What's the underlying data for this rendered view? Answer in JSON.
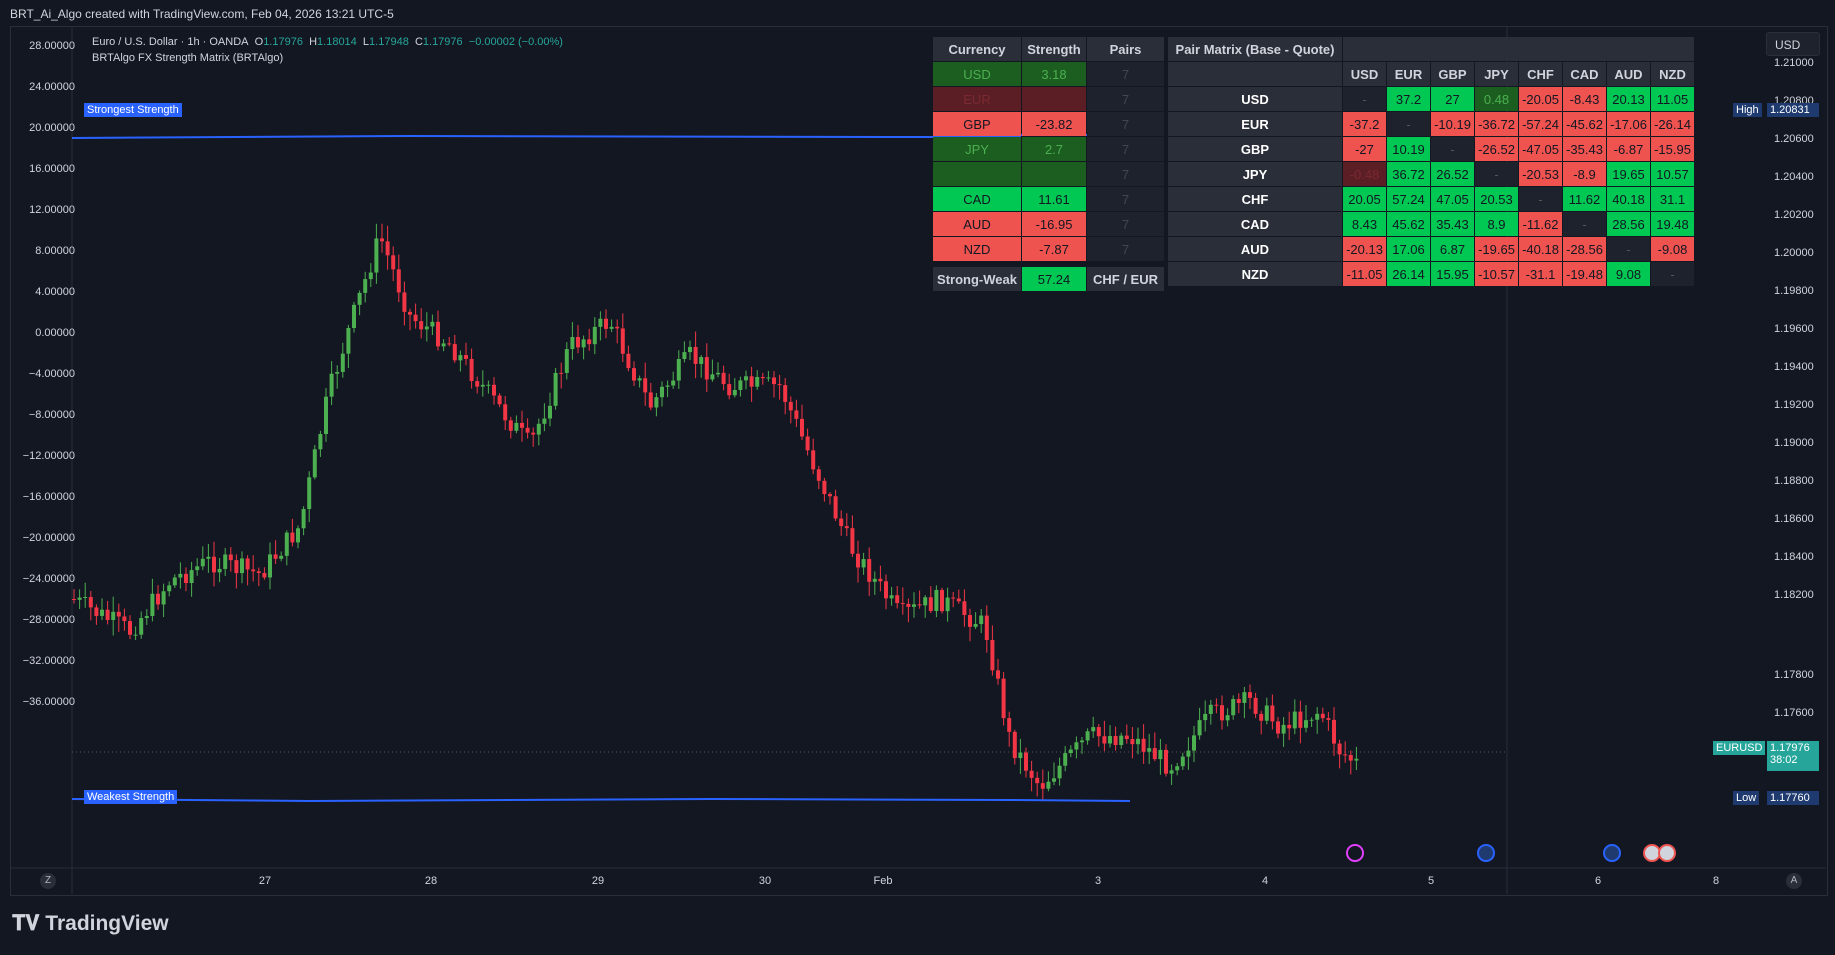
{
  "header": {
    "text": "BRT_Ai_Algo created with TradingView.com, Feb 04, 2026 13:21 UTC-5"
  },
  "legend": {
    "symbol": "Euro / U.S. Dollar · 1h · OANDA",
    "o_label": "O",
    "o": "1.17976",
    "h_label": "H",
    "h": "1.18014",
    "l_label": "L",
    "l": "1.17948",
    "c_label": "C",
    "c": "1.17976",
    "change": "−0.00002 (−0.00%)",
    "indicator": "BRTAlgo FX Strength Matrix (BRTAlgo)"
  },
  "left_axis": [
    "28.00000",
    "24.00000",
    "20.00000",
    "16.00000",
    "12.00000",
    "8.00000",
    "4.00000",
    "0.00000",
    "−4.00000",
    "−8.00000",
    "−12.00000",
    "−16.00000",
    "−20.00000",
    "−24.00000",
    "−28.00000",
    "−32.00000",
    "−36.00000"
  ],
  "right_axis": [
    "1.21000",
    "1.20800",
    "1.20600",
    "1.20400",
    "1.20200",
    "1.20000",
    "1.19800",
    "1.19600",
    "1.19400",
    "1.19200",
    "1.19000",
    "1.18800",
    "1.18600",
    "1.18400",
    "1.18200",
    "1.17800",
    "1.17600"
  ],
  "x_axis": [
    "27",
    "28",
    "29",
    "30",
    "Feb",
    "3",
    "4",
    "5",
    "6",
    "8"
  ],
  "lines": {
    "strongest": "Strongest Strength",
    "weakest": "Weakest Strength"
  },
  "price_tags": {
    "high_label": "High",
    "high": "1.20831",
    "symbol": "EURUSD",
    "last": "1.17976",
    "countdown": "38:02",
    "low_label": "Low",
    "low": "1.17760"
  },
  "currency_selector": "USD",
  "strength_table": {
    "headers": [
      "Currency",
      "Strength",
      "Pairs"
    ],
    "rows": [
      {
        "currency": "USD",
        "strength": "3.18",
        "pairs": "7",
        "style": "dg"
      },
      {
        "currency": "EUR",
        "strength": "",
        "pairs": "7",
        "style": "dr"
      },
      {
        "currency": "GBP",
        "strength": "-23.82",
        "pairs": "7",
        "style": "rd"
      },
      {
        "currency": "JPY",
        "strength": "2.7",
        "pairs": "7",
        "style": "dg"
      },
      {
        "currency": "",
        "strength": "",
        "pairs": "7",
        "style": "dg"
      },
      {
        "currency": "CAD",
        "strength": "11.61",
        "pairs": "7",
        "style": "gr"
      },
      {
        "currency": "AUD",
        "strength": "-16.95",
        "pairs": "7",
        "style": "rd"
      },
      {
        "currency": "NZD",
        "strength": "-7.87",
        "pairs": "7",
        "style": "rd"
      }
    ],
    "strong_weak_label": "Strong-Weak",
    "strong_weak_value": "57.24",
    "strong_weak_pair": "CHF / EUR"
  },
  "matrix": {
    "title": "Pair Matrix (Base - Quote)",
    "columns": [
      "USD",
      "EUR",
      "GBP",
      "JPY",
      "CHF",
      "CAD",
      "AUD",
      "NZD"
    ],
    "rows": [
      {
        "base": "USD",
        "cells": [
          "-",
          "37.2",
          "27",
          "0.48",
          "-20.05",
          "-8.43",
          "20.13",
          "11.05"
        ]
      },
      {
        "base": "EUR",
        "cells": [
          "-37.2",
          "-",
          "-10.19",
          "-36.72",
          "-57.24",
          "-45.62",
          "-17.06",
          "-26.14"
        ]
      },
      {
        "base": "GBP",
        "cells": [
          "-27",
          "10.19",
          "-",
          "-26.52",
          "-47.05",
          "-35.43",
          "-6.87",
          "-15.95"
        ]
      },
      {
        "base": "JPY",
        "cells": [
          "-0.48",
          "36.72",
          "26.52",
          "-",
          "-20.53",
          "-8.9",
          "19.65",
          "10.57"
        ]
      },
      {
        "base": "CHF",
        "cells": [
          "20.05",
          "57.24",
          "47.05",
          "20.53",
          "-",
          "11.62",
          "40.18",
          "31.1"
        ]
      },
      {
        "base": "CAD",
        "cells": [
          "8.43",
          "45.62",
          "35.43",
          "8.9",
          "-11.62",
          "-",
          "28.56",
          "19.48"
        ]
      },
      {
        "base": "AUD",
        "cells": [
          "-20.13",
          "17.06",
          "6.87",
          "-19.65",
          "-40.18",
          "-28.56",
          "-",
          "-9.08"
        ]
      },
      {
        "base": "NZD",
        "cells": [
          "-11.05",
          "26.14",
          "15.95",
          "-10.57",
          "-31.1",
          "-19.48",
          "9.08",
          "-"
        ]
      }
    ]
  },
  "colors": {
    "bull": "#26a69a",
    "bear": "#ef5350",
    "bull_candle": "#4caf50",
    "bear_candle": "#f23645",
    "line": "#2962ff"
  },
  "corner": {
    "left": "Z",
    "right": "A"
  },
  "footer": {
    "logo": "TradingView"
  }
}
